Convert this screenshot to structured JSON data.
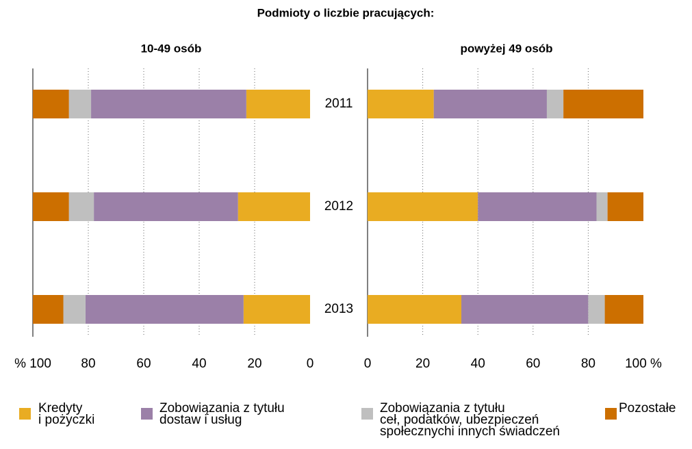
{
  "title": "Podmioty o liczbie pracujących:",
  "chart_data": [
    {
      "type": "bar",
      "orientation": "horizontal",
      "stacked": true,
      "title": "10-49 osób",
      "categories": [
        "2011",
        "2012",
        "2013"
      ],
      "series": [
        {
          "name": "Kredyty\ni pożyczki",
          "color": "#e9ac22",
          "values": [
            23,
            26,
            24
          ]
        },
        {
          "name": "Zobowiązania z tytułu\ndostaw i usług",
          "color": "#9b80a8",
          "values": [
            56,
            52,
            57
          ]
        },
        {
          "name": "Zobowiązania z tytułu\nceł, podatków, ubezpieczeń\nspołecznychi innych świadczeń",
          "color": "#bfbfbf",
          "values": [
            8,
            9,
            8
          ]
        },
        {
          "name": "Pozostałe",
          "color": "#cc6f00",
          "values": [
            13,
            13,
            11
          ]
        }
      ],
      "xlim": [
        100,
        0
      ],
      "xticks": [
        {
          "value": 100,
          "label": "% 100"
        },
        80,
        60,
        40,
        20,
        0
      ],
      "grid": true
    },
    {
      "type": "bar",
      "orientation": "horizontal",
      "stacked": true,
      "title": "powyżej 49 osób",
      "series": [
        {
          "color": "#e9ac22",
          "values": [
            24,
            40,
            34
          ]
        },
        {
          "color": "#9b80a8",
          "values": [
            41,
            43,
            46
          ]
        },
        {
          "color": "#bfbfbf",
          "values": [
            6,
            4,
            6
          ]
        },
        {
          "color": "#cc6f00",
          "values": [
            29,
            13,
            14
          ]
        }
      ],
      "xlim": [
        0,
        100
      ],
      "xticks": [
        0,
        20,
        40,
        60,
        80,
        {
          "value": 100,
          "label": "100 %"
        }
      ],
      "grid": true
    }
  ]
}
